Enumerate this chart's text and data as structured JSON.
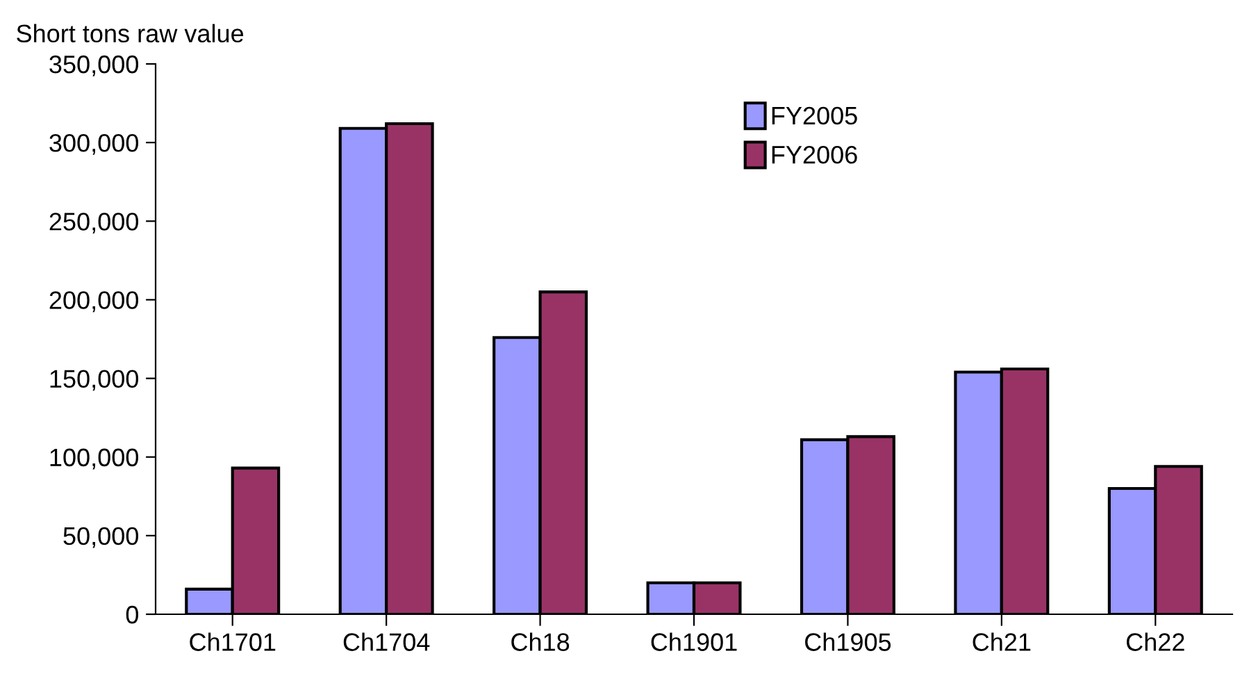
{
  "chart_data": {
    "type": "bar",
    "ylabel": "Short tons raw value",
    "categories": [
      "Ch1701",
      "Ch1704",
      "Ch18",
      "Ch1901",
      "Ch1905",
      "Ch21",
      "Ch22"
    ],
    "series": [
      {
        "name": "FY2005",
        "color": "#9999ff",
        "values": [
          16000,
          309000,
          176000,
          20000,
          111000,
          154000,
          80000
        ]
      },
      {
        "name": "FY2006",
        "color": "#993366",
        "values": [
          93000,
          312000,
          205000,
          20000,
          113000,
          156000,
          94000
        ]
      }
    ],
    "ylim": [
      0,
      350000
    ],
    "yticks": [
      {
        "value": 0,
        "label": "0"
      },
      {
        "value": 50000,
        "label": "50,000"
      },
      {
        "value": 100000,
        "label": "100,000"
      },
      {
        "value": 150000,
        "label": "150,000"
      },
      {
        "value": 200000,
        "label": "200,000"
      },
      {
        "value": 250000,
        "label": "250,000"
      },
      {
        "value": 300000,
        "label": "300,000"
      },
      {
        "value": 350000,
        "label": "350,000"
      }
    ],
    "grid": false,
    "legend": "top"
  }
}
